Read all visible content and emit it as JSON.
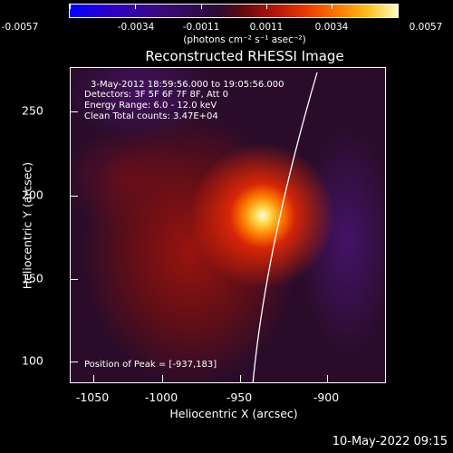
{
  "colorbar": {
    "tick_labels": [
      "-0.0057",
      "-0.0034",
      "-0.0011",
      "0.0011",
      "0.0034",
      "0.0057"
    ],
    "units": "(photons cm⁻² s⁻¹ asec⁻²)"
  },
  "plot": {
    "title": "Reconstructed RHESSI Image",
    "info_lines": [
      "3-May-2012 18:59:56.000 to 19:05:56.000",
      "Detectors: 3F 5F 6F 7F 8F, Att 0",
      "Energy Range: 6.0 - 12.0 keV",
      "Clean     Total counts: 3.47E+04"
    ],
    "peak_label": "Position of Peak = [-937,183]",
    "x_axis": {
      "title": "Heliocentric X (arcsec)",
      "tick_labels": [
        "-1050",
        "-1000",
        "-950",
        "-900"
      ]
    },
    "y_axis": {
      "title": "Heliocentric Y (arcsec)",
      "tick_labels": [
        "100",
        "150",
        "200",
        "250"
      ]
    }
  },
  "footer": {
    "timestamp": "10-May-2022 09:15"
  }
}
